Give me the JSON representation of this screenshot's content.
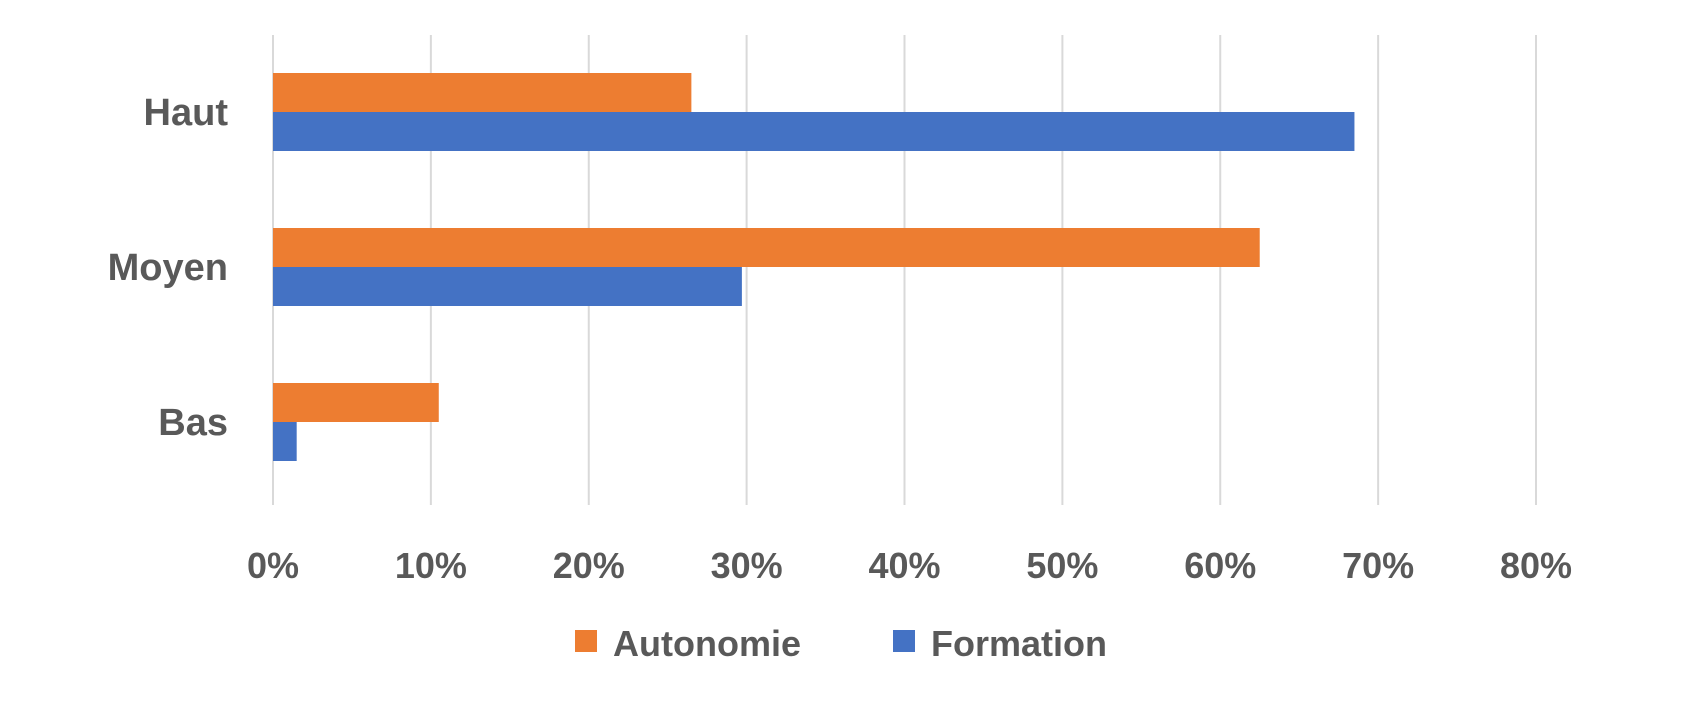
{
  "chart_data": {
    "type": "bar",
    "orientation": "horizontal",
    "categories": [
      "Haut",
      "Moyen",
      "Bas"
    ],
    "series": [
      {
        "name": "Autonomie",
        "color": "#ED7D31",
        "values": [
          26.5,
          62.5,
          10.5
        ]
      },
      {
        "name": "Formation",
        "color": "#4472C4",
        "values": [
          68.5,
          29.7,
          1.5
        ]
      }
    ],
    "x_ticks": [
      "0%",
      "10%",
      "20%",
      "30%",
      "40%",
      "50%",
      "60%",
      "70%",
      "80%"
    ],
    "xlim": [
      0,
      80
    ],
    "title": "",
    "xlabel": "",
    "ylabel": "",
    "grid": "vertical",
    "legend_position": "bottom"
  }
}
